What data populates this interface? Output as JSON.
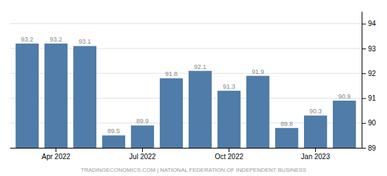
{
  "chart_data": {
    "type": "bar",
    "categories": [
      null,
      "Apr 2022",
      null,
      null,
      "Jul 2022",
      null,
      null,
      "Oct 2022",
      null,
      null,
      "Jan 2023",
      null
    ],
    "values": [
      93.2,
      93.2,
      93.1,
      89.5,
      89.9,
      91.8,
      92.1,
      91.3,
      91.9,
      89.8,
      90.3,
      90.9
    ],
    "color": "#4f7ca8",
    "ylim": [
      89,
      94.5
    ],
    "yticks": [
      89,
      90,
      91,
      92,
      93,
      94
    ],
    "grid": true,
    "data_labels": true,
    "annotations": [
      "TRADINGECONOMICS.COM | NATIONAL FEDERATION OF INDEPENDENT BUSINESS"
    ]
  }
}
